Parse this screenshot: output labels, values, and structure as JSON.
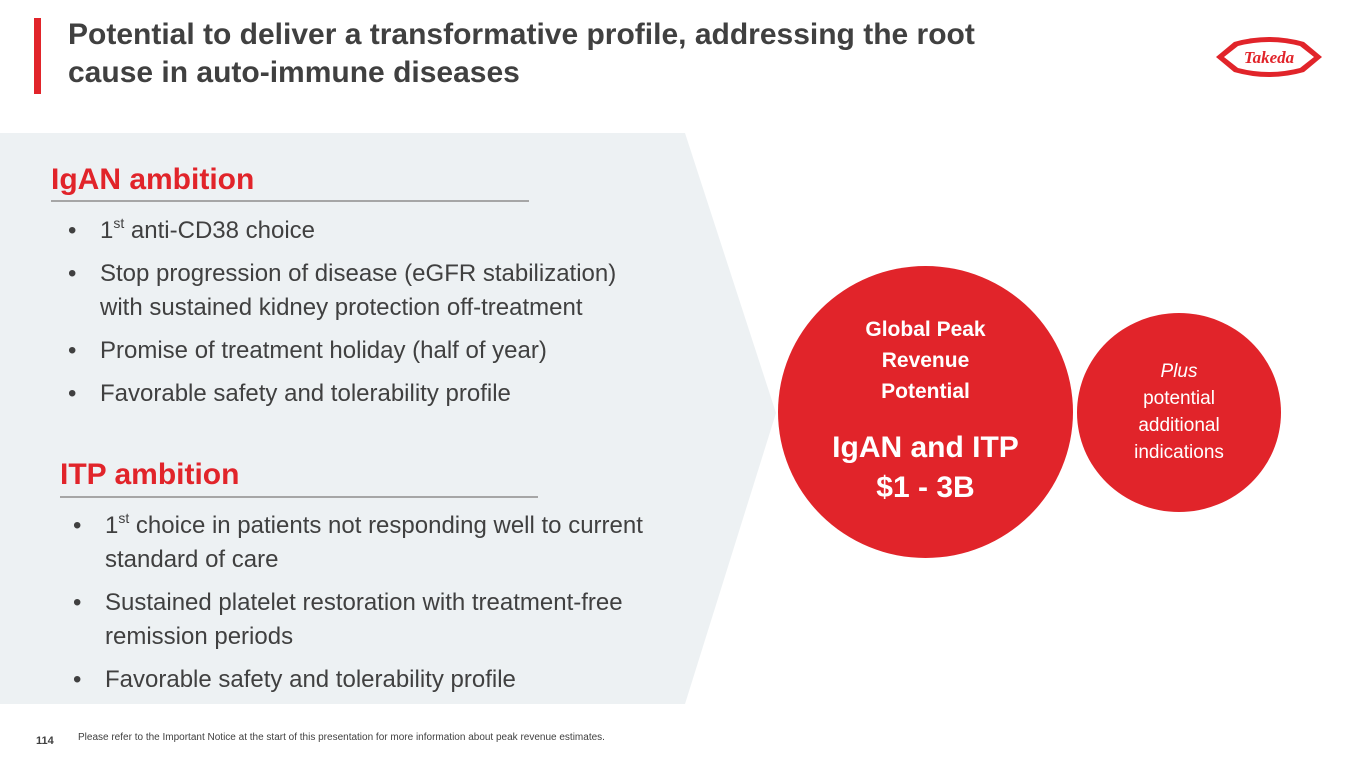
{
  "header": {
    "title_line1": "Potential to deliver a transformative profile, addressing the root",
    "title_line2": "cause in auto-immune diseases",
    "logo_text": "Takeda"
  },
  "igan": {
    "heading": "IgAN ambition",
    "bullets": [
      {
        "sup_prefix": "1",
        "sup": "st",
        "text": " anti-CD38 choice"
      },
      {
        "text": "Stop progression of disease (eGFR stabilization) with sustained kidney protection off-treatment"
      },
      {
        "text": "Promise of treatment holiday (half of year)"
      },
      {
        "text": "Favorable safety and tolerability profile"
      }
    ]
  },
  "itp": {
    "heading": "ITP ambition",
    "bullets": [
      {
        "sup_prefix": "1",
        "sup": "st",
        "text": " choice in patients not responding well to current standard of care"
      },
      {
        "text": "Sustained platelet restoration with treatment-free remission periods"
      },
      {
        "text": "Favorable safety and tolerability profile"
      }
    ]
  },
  "revenue": {
    "label_line1": "Global Peak",
    "label_line2": "Revenue",
    "label_line3": "Potential",
    "value_line1": "IgAN and ITP",
    "value_line2": "$1 - 3B"
  },
  "additional": {
    "plus": "Plus",
    "line1": "potential",
    "line2": "additional",
    "line3": "indications"
  },
  "footer": {
    "page_number": "114",
    "note": "Please refer to the Important Notice at the start of this presentation for more information about peak revenue estimates."
  },
  "colors": {
    "accent": "#e1242a",
    "panel": "#edf1f3",
    "text": "#404040"
  }
}
